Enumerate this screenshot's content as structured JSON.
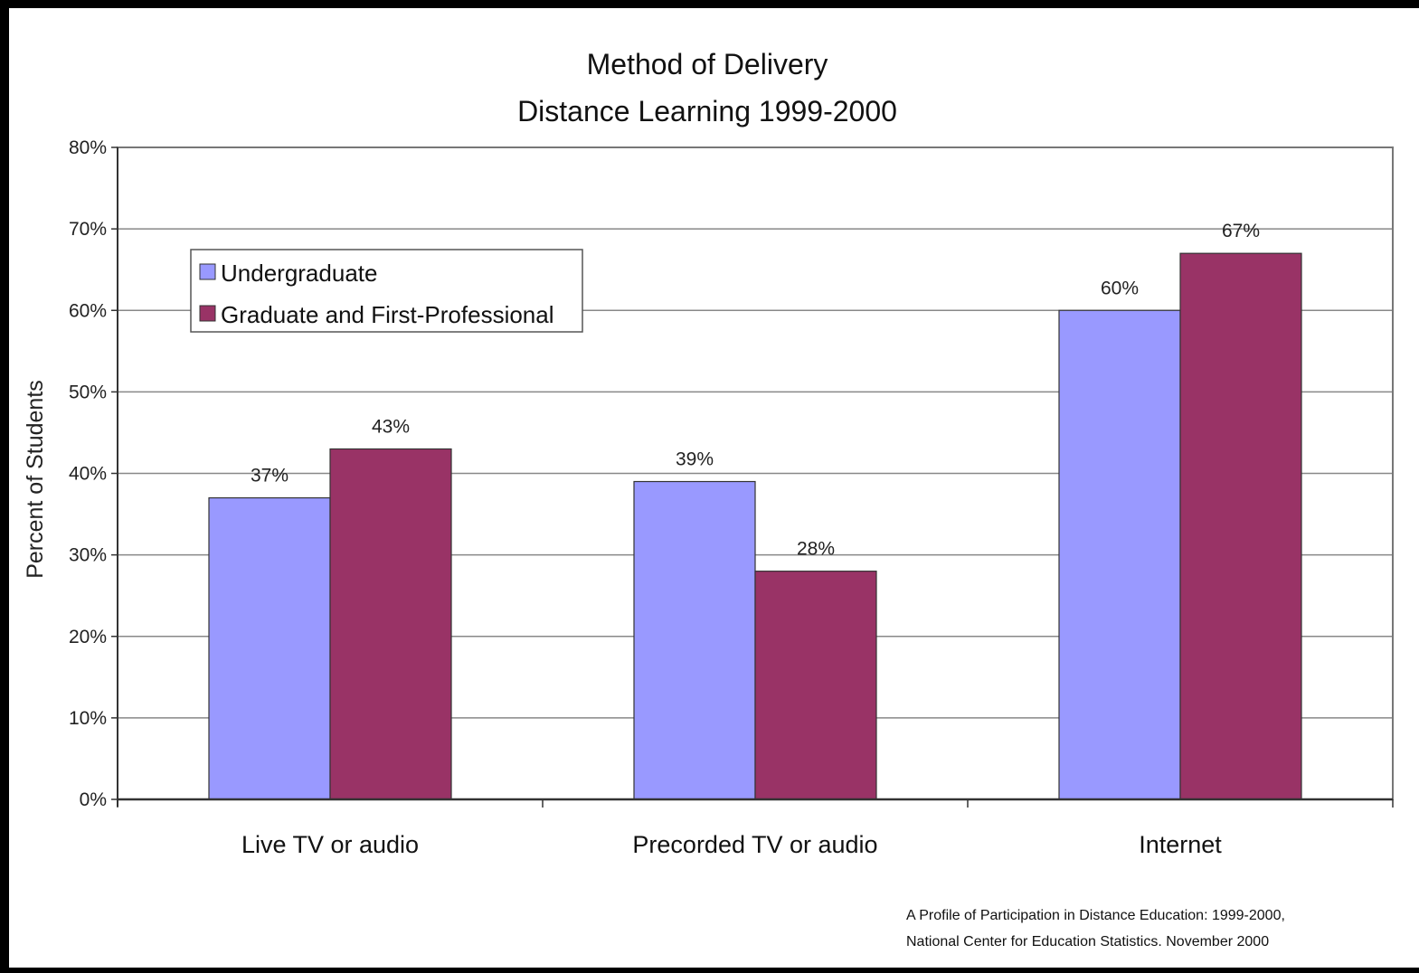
{
  "chart_data": {
    "type": "bar",
    "title": [
      "Method of Delivery",
      "Distance Learning 1999-2000"
    ],
    "ylabel": "Percent of Students",
    "xlabel": "",
    "categories": [
      "Live TV or audio",
      "Precorded TV or audio",
      "Internet"
    ],
    "series": [
      {
        "name": "Undergraduate",
        "values": [
          37,
          39,
          60
        ],
        "labels": [
          "37%",
          "39%",
          "60%"
        ],
        "color": "#9999ff"
      },
      {
        "name": "Graduate and First-Professional",
        "values": [
          43,
          28,
          67
        ],
        "labels": [
          "43%",
          "28%",
          "67%"
        ],
        "color": "#993366"
      }
    ],
    "ylim": [
      0,
      80
    ],
    "yticks": [
      0,
      10,
      20,
      30,
      40,
      50,
      60,
      70,
      80
    ],
    "ytick_labels": [
      "0%",
      "10%",
      "20%",
      "30%",
      "40%",
      "50%",
      "60%",
      "70%",
      "80%"
    ],
    "grid": true,
    "legend_position": "top-left",
    "plot_background": "#ffffff"
  },
  "source": {
    "line1": "A Profile of Participation in Distance Education: 1999-2000,",
    "line2": "National Center for Education Statistics. November 2000"
  }
}
